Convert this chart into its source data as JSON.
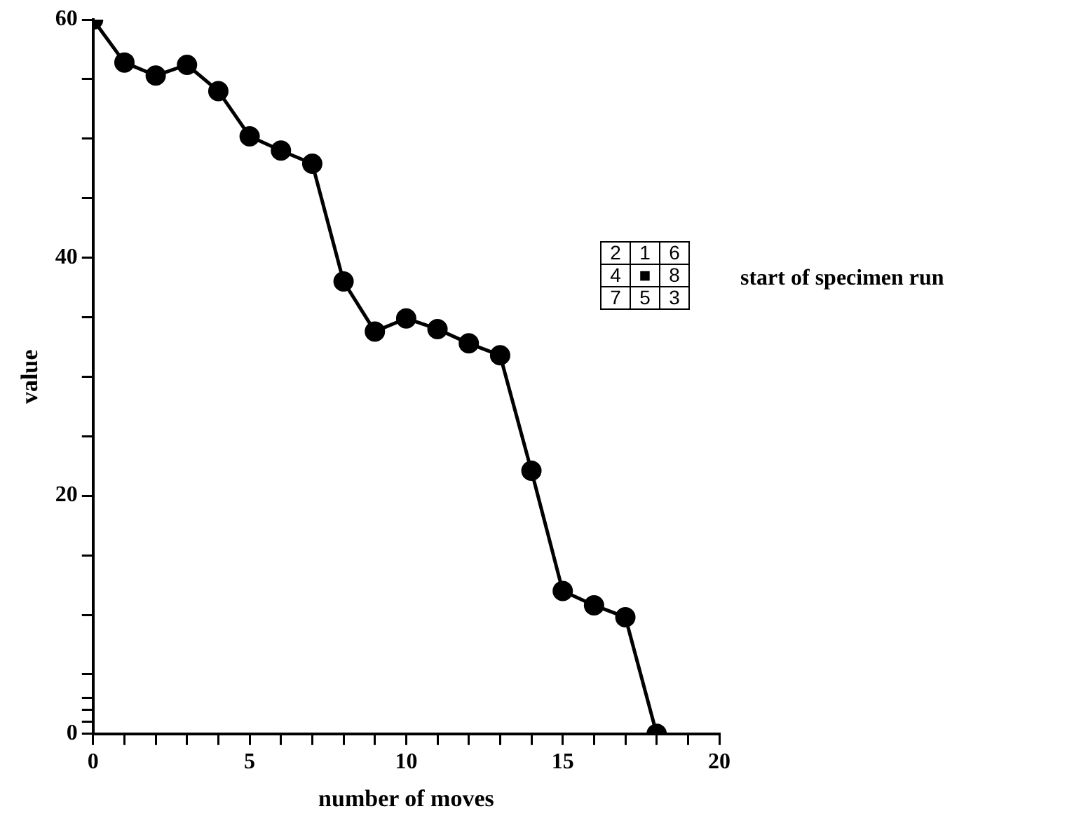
{
  "chart_data": {
    "type": "line",
    "xlabel": "number of moves",
    "ylabel": "value",
    "x": [
      0,
      1,
      2,
      3,
      4,
      5,
      6,
      7,
      8,
      9,
      10,
      11,
      12,
      13,
      14,
      15,
      16,
      17,
      18
    ],
    "series": [
      {
        "color": "#000000",
        "values": [
          60,
          56.4,
          55.3,
          56.2,
          54.0,
          50.2,
          49.0,
          47.9,
          38.0,
          33.8,
          34.9,
          34.0,
          32.8,
          31.8,
          22.1,
          12.0,
          10.8,
          9.8,
          0
        ]
      }
    ],
    "xlim": [
      0,
      20
    ],
    "xticks": [
      0,
      {
        "value": 1,
        "label": null
      },
      {
        "value": 2,
        "label": null
      },
      {
        "value": 3,
        "label": null
      },
      {
        "value": 4,
        "label": null
      },
      5,
      {
        "value": 6,
        "label": null
      },
      {
        "value": 7,
        "label": null
      },
      {
        "value": 8,
        "label": null
      },
      {
        "value": 9,
        "label": null
      },
      10,
      {
        "value": 11,
        "label": null
      },
      {
        "value": 12,
        "label": null
      },
      {
        "value": 13,
        "label": null
      },
      {
        "value": 14,
        "label": null
      },
      15,
      {
        "value": 16,
        "label": null
      },
      {
        "value": 17,
        "label": null
      },
      {
        "value": 18,
        "label": null
      },
      {
        "value": 19,
        "label": null
      },
      20
    ],
    "ylim": [
      0,
      60
    ],
    "yticks": [
      0,
      {
        "value": 1,
        "label": null
      },
      {
        "value": 2,
        "label": null
      },
      {
        "value": 3,
        "label": null
      },
      {
        "value": 5,
        "label": null
      },
      {
        "value": 10,
        "label": null
      },
      {
        "value": 15,
        "label": null
      },
      20,
      {
        "value": 25,
        "label": null
      },
      {
        "value": 30,
        "label": null
      },
      {
        "value": 35,
        "label": null
      },
      40,
      {
        "value": 45,
        "label": null
      },
      {
        "value": 50,
        "label": null
      },
      {
        "value": 55,
        "label": null
      },
      60
    ],
    "annotations": [
      "2 1 6",
      "4 ■ 8",
      "7 5 3",
      "start of specimen run"
    ],
    "grid": false,
    "legend": false,
    "marker": "circle",
    "line_style": "solid"
  }
}
